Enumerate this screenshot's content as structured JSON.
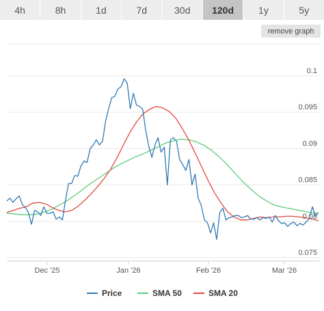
{
  "range_tabs": [
    {
      "label": "4h",
      "active": false
    },
    {
      "label": "8h",
      "active": false
    },
    {
      "label": "1d",
      "active": false
    },
    {
      "label": "7d",
      "active": false
    },
    {
      "label": "30d",
      "active": false
    },
    {
      "label": "120d",
      "active": true
    },
    {
      "label": "1y",
      "active": false
    },
    {
      "label": "5y",
      "active": false
    }
  ],
  "remove_graph_label": "remove graph",
  "chart_data": {
    "type": "line",
    "x_tick_labels": [
      "Dec '25",
      "Jan '26",
      "Feb '26",
      "Mar '26"
    ],
    "y_tick_labels": [
      "0.075",
      "0.08",
      "0.085",
      "0.09",
      "0.095",
      "0.1"
    ],
    "ylim": [
      0.075,
      0.1
    ],
    "grid": true,
    "legend_position": "bottom",
    "colors": {
      "price": "#2e78b4",
      "sma50": "#5ccc7c",
      "sma20": "#e0473c"
    },
    "series": [
      {
        "name": "Price",
        "color": "#2e78b4",
        "values": [
          0.0828,
          0.0832,
          0.0826,
          0.0831,
          0.0835,
          0.0823,
          0.0819,
          0.0812,
          0.0796,
          0.0815,
          0.0813,
          0.0808,
          0.082,
          0.0811,
          0.0811,
          0.0813,
          0.0803,
          0.0806,
          0.0802,
          0.0829,
          0.0852,
          0.0852,
          0.0863,
          0.0862,
          0.0876,
          0.0883,
          0.0881,
          0.09,
          0.0905,
          0.0912,
          0.0905,
          0.091,
          0.0938,
          0.0955,
          0.097,
          0.0972,
          0.0982,
          0.0985,
          0.0996,
          0.099,
          0.0955,
          0.0976,
          0.096,
          0.0958,
          0.0954,
          0.0925,
          0.0903,
          0.0888,
          0.0905,
          0.0915,
          0.0895,
          0.0902,
          0.085,
          0.0912,
          0.0915,
          0.091,
          0.0885,
          0.0878,
          0.087,
          0.0885,
          0.085,
          0.0865,
          0.0832,
          0.0822,
          0.0802,
          0.0798,
          0.0784,
          0.0798,
          0.0775,
          0.0812,
          0.0818,
          0.0802,
          0.0805,
          0.0806,
          0.0808,
          0.0808,
          0.0805,
          0.0806,
          0.0808,
          0.0803,
          0.0803,
          0.0805,
          0.0802,
          0.0805,
          0.0804,
          0.0806,
          0.0799,
          0.0808,
          0.0801,
          0.0797,
          0.0798,
          0.0793,
          0.0797,
          0.0799,
          0.0794,
          0.0797,
          0.0795,
          0.0799,
          0.0804,
          0.082,
          0.0807,
          0.0812
        ]
      },
      {
        "name": "SMA 50",
        "color": "#5ccc7c",
        "values": [
          0.0811,
          0.081,
          0.0809,
          0.0809,
          0.081,
          0.0813,
          0.0817,
          0.0823,
          0.0829,
          0.0836,
          0.0844,
          0.0852,
          0.0859,
          0.0866,
          0.0873,
          0.0879,
          0.0884,
          0.0889,
          0.0893,
          0.0898,
          0.0903,
          0.0908,
          0.0911,
          0.0913,
          0.0912,
          0.0909,
          0.0904,
          0.0897,
          0.0888,
          0.0878,
          0.0866,
          0.0855,
          0.0845,
          0.0836,
          0.0829,
          0.0823,
          0.082,
          0.0818,
          0.0816,
          0.0814,
          0.0812,
          0.0811
        ]
      },
      {
        "name": "SMA 20",
        "color": "#e0473c",
        "values": [
          0.0812,
          0.0815,
          0.0818,
          0.082,
          0.0825,
          0.0826,
          0.0824,
          0.0819,
          0.0815,
          0.0813,
          0.0815,
          0.0821,
          0.0829,
          0.0838,
          0.0848,
          0.0859,
          0.0872,
          0.0888,
          0.0906,
          0.0923,
          0.0937,
          0.0948,
          0.0954,
          0.0958,
          0.0956,
          0.0951,
          0.0942,
          0.0928,
          0.0912,
          0.0894,
          0.0875,
          0.0856,
          0.0839,
          0.0825,
          0.0813,
          0.0806,
          0.0802,
          0.0802,
          0.0804,
          0.0806,
          0.0805,
          0.0806,
          0.0806,
          0.0807,
          0.0807,
          0.0806,
          0.0805,
          0.0803,
          0.0801
        ]
      }
    ]
  }
}
